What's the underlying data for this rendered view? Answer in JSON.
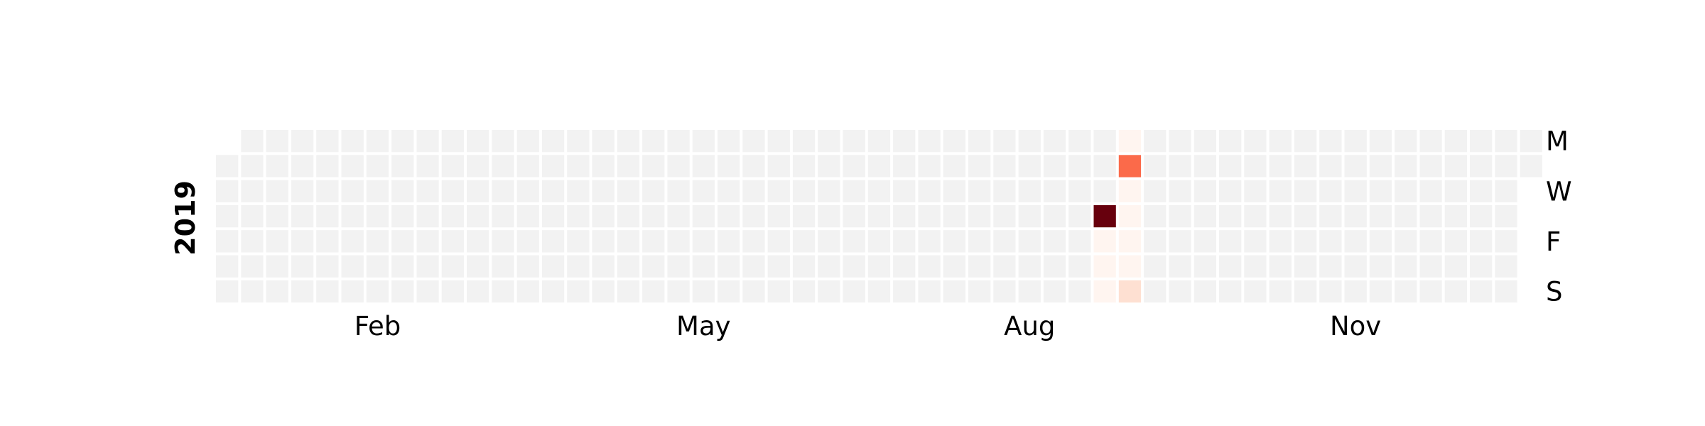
{
  "chart_data": {
    "type": "heatmap",
    "title": "",
    "year": "2019",
    "month_ticks": [
      {
        "label": "Feb",
        "week": 6.5
      },
      {
        "label": "May",
        "week": 19.5
      },
      {
        "label": "Aug",
        "week": 32.5
      },
      {
        "label": "Nov",
        "week": 45.5
      }
    ],
    "day_ticks": [
      {
        "label": "M",
        "day": 0
      },
      {
        "label": "W",
        "day": 2
      },
      {
        "label": "F",
        "day": 4
      },
      {
        "label": "S",
        "day": 6
      }
    ],
    "weeks": 53,
    "first_week_start_day": 1,
    "last_week_end_day": 1,
    "empty_color": "#f2f2f2",
    "colormap": [
      "#fff5f0",
      "#fee0d2",
      "#fcbba1",
      "#fc9272",
      "#fb6a4a",
      "#ef3b2c",
      "#cb181d",
      "#a50f15",
      "#67000d"
    ],
    "vmax": 10,
    "values": [
      {
        "week": 35,
        "day": 3,
        "value": 10
      },
      {
        "week": 35,
        "day": 4,
        "value": 0.3
      },
      {
        "week": 35,
        "day": 5,
        "value": 0.3
      },
      {
        "week": 35,
        "day": 6,
        "value": 0.3
      },
      {
        "week": 36,
        "day": 0,
        "value": 0.3
      },
      {
        "week": 36,
        "day": 1,
        "value": 4.5
      },
      {
        "week": 36,
        "day": 2,
        "value": 0.3
      },
      {
        "week": 36,
        "day": 3,
        "value": 0.3
      },
      {
        "week": 36,
        "day": 4,
        "value": 0.3
      },
      {
        "week": 36,
        "day": 5,
        "value": 0.3
      },
      {
        "week": 36,
        "day": 6,
        "value": 0.8
      }
    ]
  }
}
